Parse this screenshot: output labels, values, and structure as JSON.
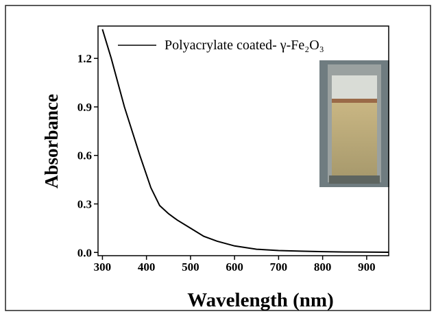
{
  "chart_data": {
    "type": "line",
    "x_label": "Wavelength (nm)",
    "y_label": "Absorbance",
    "x": [
      300,
      320,
      350,
      385,
      410,
      430,
      450,
      470,
      500,
      530,
      560,
      600,
      650,
      700,
      750,
      800,
      850,
      900,
      950
    ],
    "series": [
      {
        "name": "Polyacrylate coated- γ-Fe₂O₃",
        "color": "#000000",
        "values": [
          1.38,
          1.2,
          0.9,
          0.6,
          0.4,
          0.29,
          0.24,
          0.2,
          0.15,
          0.1,
          0.07,
          0.04,
          0.02,
          0.012,
          0.008,
          0.005,
          0.003,
          0.002,
          0.001
        ]
      }
    ],
    "xlim": [
      290,
      950
    ],
    "xticks": [
      300,
      400,
      500,
      600,
      700,
      800,
      900
    ],
    "ylim": [
      -0.02,
      1.4
    ],
    "yticks": [
      {
        "value": 0,
        "label": "0.0"
      },
      0.3,
      0.6,
      0.9,
      1.2
    ],
    "grid": false,
    "legend": "top"
  }
}
